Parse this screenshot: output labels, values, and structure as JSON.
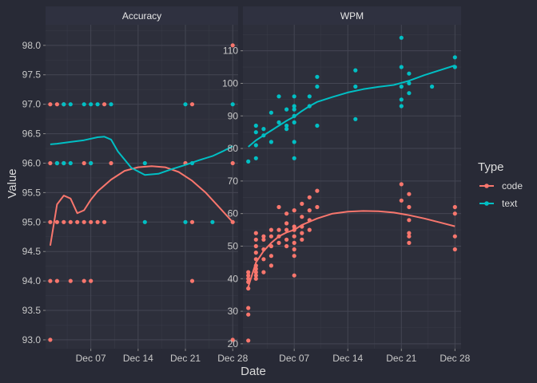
{
  "chart_data": {
    "type": "scatter",
    "xlabel": "Date",
    "ylabel": "Value",
    "colors": {
      "code": "#f8766d",
      "text": "#00bfc4",
      "background": "#282a36",
      "panel": "#2d2f3b",
      "strip": "#2f3140"
    },
    "x_ticks": [
      {
        "label": "Dec 07",
        "day": 7
      },
      {
        "label": "Dec 14",
        "day": 14
      },
      {
        "label": "Dec 21",
        "day": 21
      },
      {
        "label": "Dec 28",
        "day": 28
      }
    ],
    "legend": {
      "title": "Type",
      "position": "right",
      "entries": [
        {
          "name": "code",
          "color": "#f8766d"
        },
        {
          "name": "text",
          "color": "#00bfc4"
        }
      ]
    },
    "grid": true,
    "panels": [
      {
        "title": "Accuracy",
        "xlim": [
          0.3,
          28.8
        ],
        "ylim": [
          92.85,
          98.35
        ],
        "y_ticks": [
          "93.0",
          "93.5",
          "94.0",
          "94.5",
          "95.0",
          "95.5",
          "96.0",
          "96.5",
          "97.0",
          "97.5",
          "98.0"
        ],
        "series": [
          {
            "name": "code",
            "points": [
              [
                1,
                97
              ],
              [
                1,
                96
              ],
              [
                1,
                95
              ],
              [
                1,
                94
              ],
              [
                1,
                93
              ],
              [
                2,
                97
              ],
              [
                2,
                96
              ],
              [
                2,
                95
              ],
              [
                2,
                94
              ],
              [
                3,
                97
              ],
              [
                3,
                96
              ],
              [
                3,
                95
              ],
              [
                4,
                95
              ],
              [
                4,
                94
              ],
              [
                5,
                95
              ],
              [
                6,
                96
              ],
              [
                6,
                95
              ],
              [
                6,
                94
              ],
              [
                7,
                96
              ],
              [
                7,
                95
              ],
              [
                7,
                94
              ],
              [
                8,
                95
              ],
              [
                9,
                97
              ],
              [
                9,
                95
              ],
              [
                10,
                96
              ],
              [
                21,
                96
              ],
              [
                22,
                97
              ],
              [
                22,
                95
              ],
              [
                22,
                94
              ],
              [
                28,
                98
              ],
              [
                28,
                96
              ],
              [
                28,
                95
              ],
              [
                28,
                93
              ]
            ],
            "trend": [
              [
                1,
                94.6
              ],
              [
                2,
                95.3
              ],
              [
                3,
                95.45
              ],
              [
                4,
                95.4
              ],
              [
                5,
                95.15
              ],
              [
                6,
                95.2
              ],
              [
                7,
                95.38
              ],
              [
                8,
                95.52
              ],
              [
                10,
                95.72
              ],
              [
                12,
                95.87
              ],
              [
                14,
                95.93
              ],
              [
                16,
                95.95
              ],
              [
                18,
                95.93
              ],
              [
                20,
                95.85
              ],
              [
                22,
                95.7
              ],
              [
                24,
                95.5
              ],
              [
                26,
                95.25
              ],
              [
                28,
                95.0
              ]
            ]
          },
          {
            "name": "text",
            "points": [
              [
                2,
                96
              ],
              [
                3,
                97
              ],
              [
                3,
                96
              ],
              [
                4,
                96
              ],
              [
                4,
                97
              ],
              [
                6,
                97
              ],
              [
                7,
                97
              ],
              [
                7,
                96
              ],
              [
                8,
                97
              ],
              [
                10,
                97
              ],
              [
                15,
                96
              ],
              [
                15,
                95
              ],
              [
                21,
                97
              ],
              [
                21,
                95
              ],
              [
                22,
                96
              ],
              [
                25,
                95
              ],
              [
                28,
                97
              ]
            ],
            "trend": [
              [
                1,
                96.32
              ],
              [
                2,
                96.33
              ],
              [
                4,
                96.36
              ],
              [
                6,
                96.39
              ],
              [
                8,
                96.44
              ],
              [
                9,
                96.45
              ],
              [
                10,
                96.4
              ],
              [
                11,
                96.2
              ],
              [
                13,
                95.92
              ],
              [
                15,
                95.8
              ],
              [
                17,
                95.82
              ],
              [
                19,
                95.9
              ],
              [
                21,
                95.97
              ],
              [
                23,
                96.05
              ],
              [
                25,
                96.12
              ],
              [
                26.5,
                96.2
              ],
              [
                28,
                96.29
              ]
            ]
          }
        ]
      },
      {
        "title": "WPM",
        "xlim": [
          0.3,
          28.8
        ],
        "ylim": [
          18.5,
          118
        ],
        "y_ticks": [
          "20",
          "30",
          "40",
          "50",
          "60",
          "70",
          "80",
          "90",
          "100",
          "110"
        ],
        "series": [
          {
            "name": "code",
            "points": [
              [
                1,
                21
              ],
              [
                1,
                29
              ],
              [
                1,
                31
              ],
              [
                1,
                37
              ],
              [
                1,
                39
              ],
              [
                1,
                40
              ],
              [
                1,
                41
              ],
              [
                1,
                42
              ],
              [
                2,
                40
              ],
              [
                2,
                41
              ],
              [
                2,
                42
              ],
              [
                2,
                43
              ],
              [
                2,
                44
              ],
              [
                2,
                46
              ],
              [
                2,
                48
              ],
              [
                2,
                50
              ],
              [
                2,
                52
              ],
              [
                2,
                54
              ],
              [
                3,
                42
              ],
              [
                3,
                46
              ],
              [
                3,
                49
              ],
              [
                3,
                52
              ],
              [
                3,
                53
              ],
              [
                4,
                44
              ],
              [
                4,
                47
              ],
              [
                4,
                50
              ],
              [
                4,
                53
              ],
              [
                4,
                55
              ],
              [
                5,
                51
              ],
              [
                5,
                53
              ],
              [
                5,
                55
              ],
              [
                5,
                62
              ],
              [
                6,
                50
              ],
              [
                6,
                52
              ],
              [
                6,
                55
              ],
              [
                6,
                57
              ],
              [
                6,
                60
              ],
              [
                7,
                41
              ],
              [
                7,
                47
              ],
              [
                7,
                49
              ],
              [
                7,
                51
              ],
              [
                7,
                53
              ],
              [
                7,
                55
              ],
              [
                7,
                56
              ],
              [
                7,
                61
              ],
              [
                8,
                52
              ],
              [
                8,
                54
              ],
              [
                8,
                56
              ],
              [
                8,
                59
              ],
              [
                8,
                63
              ],
              [
                9,
                55
              ],
              [
                9,
                58
              ],
              [
                9,
                61
              ],
              [
                9,
                65
              ],
              [
                10,
                62
              ],
              [
                10,
                67
              ],
              [
                21,
                69
              ],
              [
                21,
                64
              ],
              [
                22,
                66
              ],
              [
                22,
                62
              ],
              [
                22,
                58
              ],
              [
                22,
                54
              ],
              [
                22,
                53
              ],
              [
                22,
                51
              ],
              [
                28,
                62
              ],
              [
                28,
                60
              ],
              [
                28,
                53
              ],
              [
                28,
                49
              ]
            ],
            "trend": [
              [
                1,
                37.5
              ],
              [
                2,
                45
              ],
              [
                3,
                48.5
              ],
              [
                4,
                51
              ],
              [
                5,
                53
              ],
              [
                6,
                54.2
              ],
              [
                7,
                55
              ],
              [
                8,
                56.5
              ],
              [
                10,
                58.5
              ],
              [
                12,
                60
              ],
              [
                14,
                60.6
              ],
              [
                16,
                60.8
              ],
              [
                18,
                60.7
              ],
              [
                20,
                60.3
              ],
              [
                22,
                59.5
              ],
              [
                24,
                58.5
              ],
              [
                26,
                57.3
              ],
              [
                28,
                56.1
              ]
            ]
          },
          {
            "name": "text",
            "points": [
              [
                1,
                76
              ],
              [
                2,
                77
              ],
              [
                2,
                81
              ],
              [
                2,
                85
              ],
              [
                2,
                87
              ],
              [
                3,
                84
              ],
              [
                3,
                86
              ],
              [
                4,
                82
              ],
              [
                4,
                91
              ],
              [
                5,
                88
              ],
              [
                5,
                96
              ],
              [
                6,
                86
              ],
              [
                6,
                87
              ],
              [
                6,
                92
              ],
              [
                7,
                77
              ],
              [
                7,
                82
              ],
              [
                7,
                88
              ],
              [
                7,
                90
              ],
              [
                7,
                92
              ],
              [
                7,
                93
              ],
              [
                7,
                96
              ],
              [
                9,
                93
              ],
              [
                9,
                96
              ],
              [
                10,
                87
              ],
              [
                10,
                99
              ],
              [
                10,
                102
              ],
              [
                15,
                89
              ],
              [
                15,
                99
              ],
              [
                15,
                104
              ],
              [
                21,
                114
              ],
              [
                21,
                105
              ],
              [
                21,
                99
              ],
              [
                21,
                95
              ],
              [
                21,
                93
              ],
              [
                22,
                103
              ],
              [
                22,
                100
              ],
              [
                22,
                97
              ],
              [
                25,
                99
              ],
              [
                28,
                108
              ],
              [
                28,
                105
              ]
            ],
            "trend": [
              [
                1,
                80.5
              ],
              [
                2,
                82.5
              ],
              [
                3,
                84
              ],
              [
                4,
                85.5
              ],
              [
                5,
                87
              ],
              [
                6,
                88.5
              ],
              [
                7,
                89.8
              ],
              [
                8,
                91.5
              ],
              [
                9,
                93
              ],
              [
                10,
                94.3
              ],
              [
                12,
                95.8
              ],
              [
                14,
                97.2
              ],
              [
                16,
                98.2
              ],
              [
                18,
                98.9
              ],
              [
                20,
                99.5
              ],
              [
                22,
                100.8
              ],
              [
                24,
                102.5
              ],
              [
                26,
                104
              ],
              [
                28,
                105.5
              ]
            ]
          }
        ]
      }
    ]
  }
}
